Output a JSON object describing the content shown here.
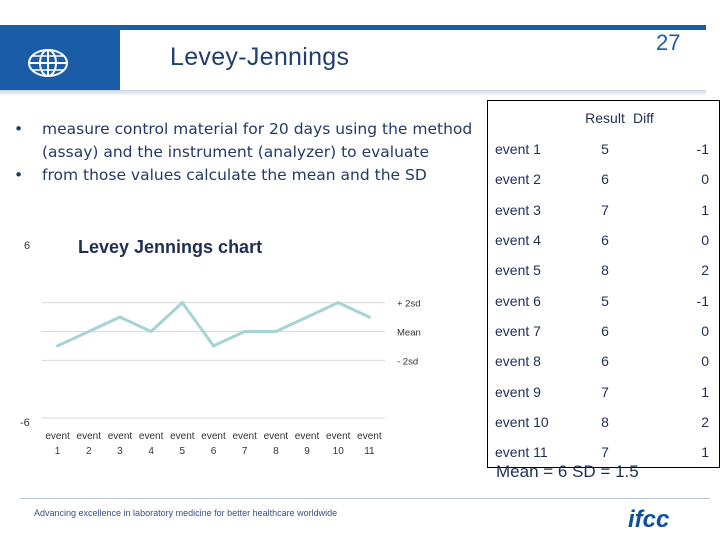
{
  "slide": {
    "title": "Levey-Jennings",
    "page_number": "27",
    "bullets": [
      "measure control material for 20 days using the method (assay) and the instrument (analyzer) to evaluate",
      "from those values calculate the mean and the SD"
    ],
    "footer_slogan": "Advancing excellence in laboratory medicine for better healthcare worldwide",
    "logo_text": "ifcc"
  },
  "table": {
    "headers": [
      "",
      "Result",
      "Diff"
    ],
    "rows": [
      [
        "event 1",
        "5",
        "-1"
      ],
      [
        "event 2",
        "6",
        "0"
      ],
      [
        "event 3",
        "7",
        "1"
      ],
      [
        "event 4",
        "6",
        "0"
      ],
      [
        "event 5",
        "8",
        "2"
      ],
      [
        "event 6",
        "5",
        "-1"
      ],
      [
        "event 7",
        "6",
        "0"
      ],
      [
        "event 8",
        "6",
        "0"
      ],
      [
        "event 9",
        "7",
        "1"
      ],
      [
        "event 10",
        "8",
        "2"
      ],
      [
        "event 11",
        "7",
        "1"
      ]
    ],
    "summary": "Mean = 6  SD = 1.5"
  },
  "colors": {
    "header_band": "#1a5da6",
    "line": "#a7d3d5",
    "text": "#233a66"
  },
  "chart_data": {
    "type": "line",
    "title": "Levey Jennings chart",
    "categories": [
      "event 1",
      "event 2",
      "event 3",
      "event 4",
      "event 5",
      "event 6",
      "event 7",
      "event 8",
      "event 9",
      "event 10",
      "event 11"
    ],
    "values": [
      -1,
      0,
      1,
      0,
      2,
      -1,
      0,
      0,
      1,
      2,
      1
    ],
    "ylim": [
      -6,
      6
    ],
    "ytick_labels": [
      "6",
      "-6"
    ],
    "reference_labels": [
      {
        "label": "+ 2sd",
        "value": 2
      },
      {
        "label": "Mean",
        "value": 0
      },
      {
        "label": "- 2sd",
        "value": -2
      }
    ],
    "grid": true
  }
}
